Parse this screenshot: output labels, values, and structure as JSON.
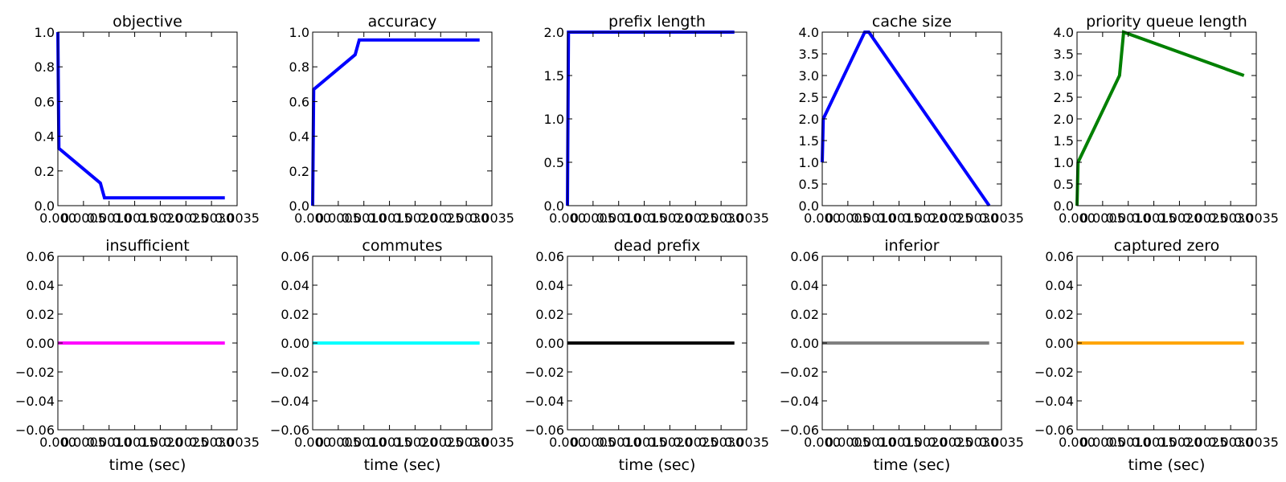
{
  "figure": {
    "background": "#ffffff"
  },
  "chart_data": [
    {
      "type": "line",
      "title": "objective",
      "xlabel": "",
      "ylabel": "",
      "xlim": [
        0,
        0.0035
      ],
      "ylim": [
        0,
        1.0
      ],
      "xticks": [
        "0.000",
        "0.0005",
        "0.0010",
        "0.0015",
        "0.0020",
        "0.0025",
        "0.0030",
        "0.0035"
      ],
      "yticks": [
        "0.0",
        "0.2",
        "0.4",
        "0.6",
        "0.8",
        "1.0"
      ],
      "ytick_values": [
        0,
        0.2,
        0.4,
        0.6,
        0.8,
        1.0
      ],
      "series": [
        {
          "color": "#0000ff",
          "x": [
            0,
            2e-05,
            0.00083,
            0.00091,
            0.00326
          ],
          "y": [
            1.0,
            0.33,
            0.13,
            0.045,
            0.045
          ]
        }
      ]
    },
    {
      "type": "line",
      "title": "accuracy",
      "xlabel": "",
      "ylabel": "",
      "xlim": [
        0,
        0.0035
      ],
      "ylim": [
        0,
        1.0
      ],
      "xticks": [
        "0.000",
        "0.0005",
        "0.0010",
        "0.0015",
        "0.0020",
        "0.0025",
        "0.0030",
        "0.0035"
      ],
      "yticks": [
        "0.0",
        "0.2",
        "0.4",
        "0.6",
        "0.8",
        "1.0"
      ],
      "ytick_values": [
        0,
        0.2,
        0.4,
        0.6,
        0.8,
        1.0
      ],
      "series": [
        {
          "color": "#0000ff",
          "x": [
            0,
            2e-05,
            0.00083,
            0.00091,
            0.00326
          ],
          "y": [
            0,
            0.67,
            0.87,
            0.955,
            0.955
          ]
        }
      ]
    },
    {
      "type": "line",
      "title": "prefix length",
      "xlabel": "",
      "ylabel": "",
      "xlim": [
        0,
        0.0035
      ],
      "ylim": [
        0,
        2.0
      ],
      "xticks": [
        "0.000",
        "0.0005",
        "0.0010",
        "0.0015",
        "0.0020",
        "0.0025",
        "0.0030",
        "0.0035"
      ],
      "yticks": [
        "0.0",
        "0.5",
        "1.0",
        "1.5",
        "2.0"
      ],
      "ytick_values": [
        0,
        0.5,
        1.0,
        1.5,
        2.0
      ],
      "series": [
        {
          "color": "#0000ff",
          "x": [
            0,
            2e-05,
            0.00083,
            0.00091,
            0.00326
          ],
          "y": [
            0,
            2,
            2,
            2,
            2
          ]
        }
      ]
    },
    {
      "type": "line",
      "title": "cache size",
      "xlabel": "",
      "ylabel": "",
      "xlim": [
        0,
        0.0035
      ],
      "ylim": [
        0,
        4.0
      ],
      "xticks": [
        "0.000",
        "0.0005",
        "0.0010",
        "0.0015",
        "0.0020",
        "0.0025",
        "0.0030",
        "0.0035"
      ],
      "yticks": [
        "0.0",
        "0.5",
        "1.0",
        "1.5",
        "2.0",
        "2.5",
        "3.0",
        "3.5",
        "4.0"
      ],
      "ytick_values": [
        0,
        0.5,
        1.0,
        1.5,
        2.0,
        2.5,
        3.0,
        3.5,
        4.0
      ],
      "series": [
        {
          "color": "#0000ff",
          "x": [
            0,
            2e-05,
            0.00083,
            0.00091,
            0.00326
          ],
          "y": [
            1,
            2,
            4,
            4,
            0
          ]
        }
      ]
    },
    {
      "type": "line",
      "title": "priority queue length",
      "xlabel": "",
      "ylabel": "",
      "xlim": [
        0,
        0.0035
      ],
      "ylim": [
        0,
        4.0
      ],
      "xticks": [
        "0.000",
        "0.0005",
        "0.0010",
        "0.0015",
        "0.0020",
        "0.0025",
        "0.0030",
        "0.0035"
      ],
      "yticks": [
        "0.0",
        "0.5",
        "1.0",
        "1.5",
        "2.0",
        "2.5",
        "3.0",
        "3.5",
        "4.0"
      ],
      "ytick_values": [
        0,
        0.5,
        1.0,
        1.5,
        2.0,
        2.5,
        3.0,
        3.5,
        4.0
      ],
      "series": [
        {
          "color": "#008000",
          "x": [
            0,
            2e-05,
            0.00083,
            0.00091,
            0.00326
          ],
          "y": [
            0,
            1,
            3,
            4,
            3
          ]
        }
      ]
    },
    {
      "type": "line",
      "title": "insufficient",
      "xlabel": "time (sec)",
      "ylabel": "",
      "xlim": [
        0,
        0.0035
      ],
      "ylim": [
        -0.06,
        0.06
      ],
      "xticks": [
        "0.000",
        "0.0005",
        "0.0010",
        "0.0015",
        "0.0020",
        "0.0025",
        "0.0030",
        "0.0035"
      ],
      "yticks": [
        "−0.06",
        "−0.04",
        "−0.02",
        "0.00",
        "0.02",
        "0.04",
        "0.06"
      ],
      "ytick_values": [
        -0.06,
        -0.04,
        -0.02,
        0,
        0.02,
        0.04,
        0.06
      ],
      "series": [
        {
          "color": "#ff00ff",
          "x": [
            0,
            2e-05,
            0.00083,
            0.00091,
            0.00326
          ],
          "y": [
            0,
            0,
            0,
            0,
            0
          ]
        }
      ]
    },
    {
      "type": "line",
      "title": "commutes",
      "xlabel": "time (sec)",
      "ylabel": "",
      "xlim": [
        0,
        0.0035
      ],
      "ylim": [
        -0.06,
        0.06
      ],
      "xticks": [
        "0.000",
        "0.0005",
        "0.0010",
        "0.0015",
        "0.0020",
        "0.0025",
        "0.0030",
        "0.0035"
      ],
      "yticks": [
        "−0.06",
        "−0.04",
        "−0.02",
        "0.00",
        "0.02",
        "0.04",
        "0.06"
      ],
      "ytick_values": [
        -0.06,
        -0.04,
        -0.02,
        0,
        0.02,
        0.04,
        0.06
      ],
      "series": [
        {
          "color": "#00ffff",
          "x": [
            0,
            2e-05,
            0.00083,
            0.00091,
            0.00326
          ],
          "y": [
            0,
            0,
            0,
            0,
            0
          ]
        }
      ]
    },
    {
      "type": "line",
      "title": "dead prefix",
      "xlabel": "time (sec)",
      "ylabel": "",
      "xlim": [
        0,
        0.0035
      ],
      "ylim": [
        -0.06,
        0.06
      ],
      "xticks": [
        "0.000",
        "0.0005",
        "0.0010",
        "0.0015",
        "0.0020",
        "0.0025",
        "0.0030",
        "0.0035"
      ],
      "yticks": [
        "−0.06",
        "−0.04",
        "−0.02",
        "0.00",
        "0.02",
        "0.04",
        "0.06"
      ],
      "ytick_values": [
        -0.06,
        -0.04,
        -0.02,
        0,
        0.02,
        0.04,
        0.06
      ],
      "series": [
        {
          "color": "#000000",
          "x": [
            0,
            2e-05,
            0.00083,
            0.00091,
            0.00326
          ],
          "y": [
            0,
            0,
            0,
            0,
            0
          ]
        }
      ]
    },
    {
      "type": "line",
      "title": "inferior",
      "xlabel": "time (sec)",
      "ylabel": "",
      "xlim": [
        0,
        0.0035
      ],
      "ylim": [
        -0.06,
        0.06
      ],
      "xticks": [
        "0.000",
        "0.0005",
        "0.0010",
        "0.0015",
        "0.0020",
        "0.0025",
        "0.0030",
        "0.0035"
      ],
      "yticks": [
        "−0.06",
        "−0.04",
        "−0.02",
        "0.00",
        "0.02",
        "0.04",
        "0.06"
      ],
      "ytick_values": [
        -0.06,
        -0.04,
        -0.02,
        0,
        0.02,
        0.04,
        0.06
      ],
      "series": [
        {
          "color": "#808080",
          "x": [
            0,
            2e-05,
            0.00083,
            0.00091,
            0.00326
          ],
          "y": [
            0,
            0,
            0,
            0,
            0
          ]
        }
      ]
    },
    {
      "type": "line",
      "title": "captured zero",
      "xlabel": "time (sec)",
      "ylabel": "",
      "xlim": [
        0,
        0.0035
      ],
      "ylim": [
        -0.06,
        0.06
      ],
      "xticks": [
        "0.000",
        "0.0005",
        "0.0010",
        "0.0015",
        "0.0020",
        "0.0025",
        "0.0030",
        "0.0035"
      ],
      "yticks": [
        "−0.06",
        "−0.04",
        "−0.02",
        "0.00",
        "0.02",
        "0.04",
        "0.06"
      ],
      "ytick_values": [
        -0.06,
        -0.04,
        -0.02,
        0,
        0.02,
        0.04,
        0.06
      ],
      "series": [
        {
          "color": "#ffa500",
          "x": [
            0,
            2e-05,
            0.00083,
            0.00091,
            0.00326
          ],
          "y": [
            0,
            0,
            0,
            0,
            0
          ]
        }
      ]
    }
  ]
}
